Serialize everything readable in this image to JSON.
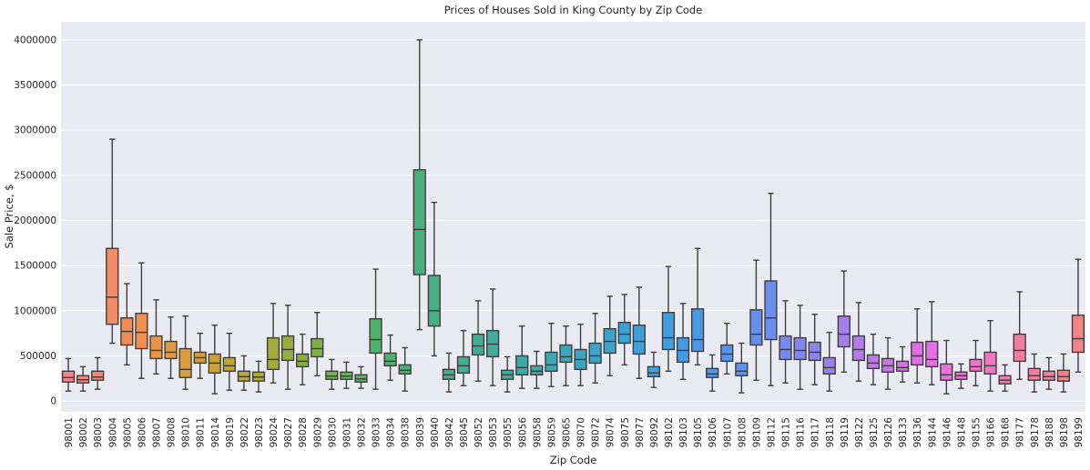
{
  "chart_data": {
    "type": "box",
    "title": "Prices of Houses Sold in King County by Zip Code",
    "xlabel": "Zip Code",
    "ylabel": "Sale Price, $",
    "ylim": [
      -120000,
      4200000
    ],
    "yticks": [
      0,
      500000,
      1000000,
      1500000,
      2000000,
      2500000,
      3000000,
      3500000,
      4000000
    ],
    "grid": true,
    "categories": [
      "98001",
      "98002",
      "98003",
      "98004",
      "98005",
      "98006",
      "98007",
      "98008",
      "98010",
      "98011",
      "98014",
      "98019",
      "98022",
      "98023",
      "98024",
      "98027",
      "98028",
      "98029",
      "98030",
      "98031",
      "98032",
      "98033",
      "98034",
      "98038",
      "98039",
      "98040",
      "98042",
      "98045",
      "98052",
      "98053",
      "98055",
      "98056",
      "98058",
      "98059",
      "98065",
      "98070",
      "98072",
      "98074",
      "98075",
      "98077",
      "98092",
      "98102",
      "98103",
      "98105",
      "98106",
      "98107",
      "98108",
      "98109",
      "98112",
      "98115",
      "98116",
      "98117",
      "98118",
      "98119",
      "98122",
      "98125",
      "98126",
      "98133",
      "98136",
      "98144",
      "98146",
      "98148",
      "98155",
      "98166",
      "98168",
      "98177",
      "98178",
      "98188",
      "98198",
      "98199"
    ],
    "boxes": [
      {
        "min": 110000,
        "q1": 210000,
        "median": 260000,
        "q3": 330000,
        "max": 470000,
        "color": "#f6838f"
      },
      {
        "min": 110000,
        "q1": 200000,
        "median": 235000,
        "q3": 280000,
        "max": 380000,
        "color": "#f5857e"
      },
      {
        "min": 130000,
        "q1": 230000,
        "median": 265000,
        "q3": 330000,
        "max": 480000,
        "color": "#f4876d"
      },
      {
        "min": 640000,
        "q1": 850000,
        "median": 1150000,
        "q3": 1690000,
        "max": 2900000,
        "color": "#f28b66"
      },
      {
        "min": 400000,
        "q1": 620000,
        "median": 770000,
        "q3": 920000,
        "max": 1300000,
        "color": "#ef8d55"
      },
      {
        "min": 250000,
        "q1": 580000,
        "median": 760000,
        "q3": 970000,
        "max": 1530000,
        "color": "#ec9053"
      },
      {
        "min": 300000,
        "q1": 470000,
        "median": 560000,
        "q3": 720000,
        "max": 1120000,
        "color": "#e7944a"
      },
      {
        "min": 250000,
        "q1": 470000,
        "median": 540000,
        "q3": 660000,
        "max": 930000,
        "color": "#e09844"
      },
      {
        "min": 130000,
        "q1": 260000,
        "median": 350000,
        "q3": 580000,
        "max": 940000,
        "color": "#d99b3e"
      },
      {
        "min": 250000,
        "q1": 420000,
        "median": 480000,
        "q3": 540000,
        "max": 750000,
        "color": "#d19e3c"
      },
      {
        "min": 80000,
        "q1": 310000,
        "median": 420000,
        "q3": 520000,
        "max": 840000,
        "color": "#c9a13a"
      },
      {
        "min": 120000,
        "q1": 330000,
        "median": 390000,
        "q3": 480000,
        "max": 750000,
        "color": "#c0a439"
      },
      {
        "min": 120000,
        "q1": 220000,
        "median": 270000,
        "q3": 330000,
        "max": 500000,
        "color": "#b8a739"
      },
      {
        "min": 100000,
        "q1": 220000,
        "median": 265000,
        "q3": 320000,
        "max": 440000,
        "color": "#aea93a"
      },
      {
        "min": 200000,
        "q1": 350000,
        "median": 460000,
        "q3": 700000,
        "max": 1080000,
        "color": "#a4aa3c"
      },
      {
        "min": 130000,
        "q1": 450000,
        "median": 570000,
        "q3": 720000,
        "max": 1060000,
        "color": "#99ac40"
      },
      {
        "min": 180000,
        "q1": 380000,
        "median": 440000,
        "q3": 520000,
        "max": 740000,
        "color": "#8dae45"
      },
      {
        "min": 280000,
        "q1": 490000,
        "median": 580000,
        "q3": 690000,
        "max": 980000,
        "color": "#80b04a"
      },
      {
        "min": 130000,
        "q1": 240000,
        "median": 275000,
        "q3": 330000,
        "max": 460000,
        "color": "#72b24f"
      },
      {
        "min": 140000,
        "q1": 240000,
        "median": 275000,
        "q3": 320000,
        "max": 430000,
        "color": "#63b356"
      },
      {
        "min": 140000,
        "q1": 210000,
        "median": 245000,
        "q3": 290000,
        "max": 380000,
        "color": "#54b35f"
      },
      {
        "min": 130000,
        "q1": 530000,
        "median": 680000,
        "q3": 910000,
        "max": 1460000,
        "color": "#4fb267"
      },
      {
        "min": 230000,
        "q1": 390000,
        "median": 440000,
        "q3": 530000,
        "max": 730000,
        "color": "#4cb06e"
      },
      {
        "min": 110000,
        "q1": 300000,
        "median": 340000,
        "q3": 400000,
        "max": 590000,
        "color": "#4ab075"
      },
      {
        "min": 790000,
        "q1": 1400000,
        "median": 1900000,
        "q3": 2560000,
        "max": 4000000,
        "color": "#49af7c"
      },
      {
        "min": 500000,
        "q1": 830000,
        "median": 1000000,
        "q3": 1390000,
        "max": 2200000,
        "color": "#48ae83"
      },
      {
        "min": 100000,
        "q1": 240000,
        "median": 290000,
        "q3": 350000,
        "max": 530000,
        "color": "#47ad89"
      },
      {
        "min": 170000,
        "q1": 310000,
        "median": 390000,
        "q3": 490000,
        "max": 780000,
        "color": "#46ac8f"
      },
      {
        "min": 220000,
        "q1": 510000,
        "median": 610000,
        "q3": 740000,
        "max": 1110000,
        "color": "#45ab95"
      },
      {
        "min": 170000,
        "q1": 490000,
        "median": 630000,
        "q3": 780000,
        "max": 1240000,
        "color": "#44aa9b"
      },
      {
        "min": 100000,
        "q1": 240000,
        "median": 290000,
        "q3": 340000,
        "max": 490000,
        "color": "#43a9a1"
      },
      {
        "min": 140000,
        "q1": 290000,
        "median": 370000,
        "q3": 500000,
        "max": 830000,
        "color": "#42a8a7"
      },
      {
        "min": 140000,
        "q1": 290000,
        "median": 330000,
        "q3": 390000,
        "max": 550000,
        "color": "#41a7ad"
      },
      {
        "min": 160000,
        "q1": 330000,
        "median": 400000,
        "q3": 540000,
        "max": 860000,
        "color": "#40a6b3"
      },
      {
        "min": 170000,
        "q1": 430000,
        "median": 490000,
        "q3": 620000,
        "max": 830000,
        "color": "#3fa5b9"
      },
      {
        "min": 170000,
        "q1": 350000,
        "median": 460000,
        "q3": 570000,
        "max": 850000,
        "color": "#3ea4bf"
      },
      {
        "min": 200000,
        "q1": 420000,
        "median": 500000,
        "q3": 640000,
        "max": 970000,
        "color": "#3ea3c5"
      },
      {
        "min": 280000,
        "q1": 530000,
        "median": 660000,
        "q3": 800000,
        "max": 1160000,
        "color": "#3ea2cb"
      },
      {
        "min": 400000,
        "q1": 640000,
        "median": 740000,
        "q3": 870000,
        "max": 1180000,
        "color": "#3fa1d1"
      },
      {
        "min": 250000,
        "q1": 520000,
        "median": 660000,
        "q3": 840000,
        "max": 1260000,
        "color": "#40a0d6"
      },
      {
        "min": 150000,
        "q1": 270000,
        "median": 310000,
        "q3": 380000,
        "max": 540000,
        "color": "#419fdb"
      },
      {
        "min": 330000,
        "q1": 570000,
        "median": 700000,
        "q3": 980000,
        "max": 1490000,
        "color": "#449ddf"
      },
      {
        "min": 240000,
        "q1": 430000,
        "median": 560000,
        "q3": 700000,
        "max": 1080000,
        "color": "#479be3"
      },
      {
        "min": 400000,
        "q1": 550000,
        "median": 680000,
        "q3": 1020000,
        "max": 1690000,
        "color": "#4b99e6"
      },
      {
        "min": 110000,
        "q1": 260000,
        "median": 300000,
        "q3": 360000,
        "max": 510000,
        "color": "#5097e9"
      },
      {
        "min": 300000,
        "q1": 440000,
        "median": 520000,
        "q3": 620000,
        "max": 860000,
        "color": "#5694eb"
      },
      {
        "min": 90000,
        "q1": 280000,
        "median": 330000,
        "q3": 420000,
        "max": 640000,
        "color": "#5c92ed"
      },
      {
        "min": 230000,
        "q1": 620000,
        "median": 740000,
        "q3": 1010000,
        "max": 1560000,
        "color": "#648fef"
      },
      {
        "min": 170000,
        "q1": 680000,
        "median": 920000,
        "q3": 1330000,
        "max": 2300000,
        "color": "#6d8cf0"
      },
      {
        "min": 200000,
        "q1": 460000,
        "median": 570000,
        "q3": 720000,
        "max": 1110000,
        "color": "#7789f0"
      },
      {
        "min": 130000,
        "q1": 460000,
        "median": 560000,
        "q3": 700000,
        "max": 1060000,
        "color": "#8286f0"
      },
      {
        "min": 180000,
        "q1": 450000,
        "median": 540000,
        "q3": 650000,
        "max": 960000,
        "color": "#8d83ef"
      },
      {
        "min": 110000,
        "q1": 300000,
        "median": 370000,
        "q3": 480000,
        "max": 760000,
        "color": "#9981ed"
      },
      {
        "min": 320000,
        "q1": 600000,
        "median": 740000,
        "q3": 940000,
        "max": 1440000,
        "color": "#a67eeb"
      },
      {
        "min": 220000,
        "q1": 450000,
        "median": 570000,
        "q3": 720000,
        "max": 1090000,
        "color": "#b27be8"
      },
      {
        "min": 180000,
        "q1": 360000,
        "median": 420000,
        "q3": 510000,
        "max": 740000,
        "color": "#be79e6"
      },
      {
        "min": 130000,
        "q1": 320000,
        "median": 390000,
        "q3": 470000,
        "max": 700000,
        "color": "#c977e4"
      },
      {
        "min": 210000,
        "q1": 330000,
        "median": 370000,
        "q3": 440000,
        "max": 600000,
        "color": "#d375e3"
      },
      {
        "min": 200000,
        "q1": 400000,
        "median": 500000,
        "q3": 650000,
        "max": 1020000,
        "color": "#dc72e2"
      },
      {
        "min": 180000,
        "q1": 380000,
        "median": 460000,
        "q3": 660000,
        "max": 1100000,
        "color": "#e470e1"
      },
      {
        "min": 80000,
        "q1": 230000,
        "median": 290000,
        "q3": 410000,
        "max": 670000,
        "color": "#e972db"
      },
      {
        "min": 140000,
        "q1": 240000,
        "median": 280000,
        "q3": 320000,
        "max": 410000,
        "color": "#ec74d2"
      },
      {
        "min": 170000,
        "q1": 330000,
        "median": 380000,
        "q3": 460000,
        "max": 670000,
        "color": "#ee76c8"
      },
      {
        "min": 110000,
        "q1": 300000,
        "median": 390000,
        "q3": 540000,
        "max": 890000,
        "color": "#ef78be"
      },
      {
        "min": 110000,
        "q1": 190000,
        "median": 230000,
        "q3": 280000,
        "max": 400000,
        "color": "#f07ab4"
      },
      {
        "min": 240000,
        "q1": 440000,
        "median": 560000,
        "q3": 740000,
        "max": 1210000,
        "color": "#f07caa"
      },
      {
        "min": 100000,
        "q1": 230000,
        "median": 280000,
        "q3": 360000,
        "max": 520000,
        "color": "#f17fa1"
      },
      {
        "min": 130000,
        "q1": 230000,
        "median": 270000,
        "q3": 330000,
        "max": 480000,
        "color": "#f28098"
      },
      {
        "min": 100000,
        "q1": 220000,
        "median": 270000,
        "q3": 340000,
        "max": 520000,
        "color": "#f38190"
      },
      {
        "min": 320000,
        "q1": 540000,
        "median": 690000,
        "q3": 950000,
        "max": 1570000,
        "color": "#f48288"
      }
    ]
  }
}
